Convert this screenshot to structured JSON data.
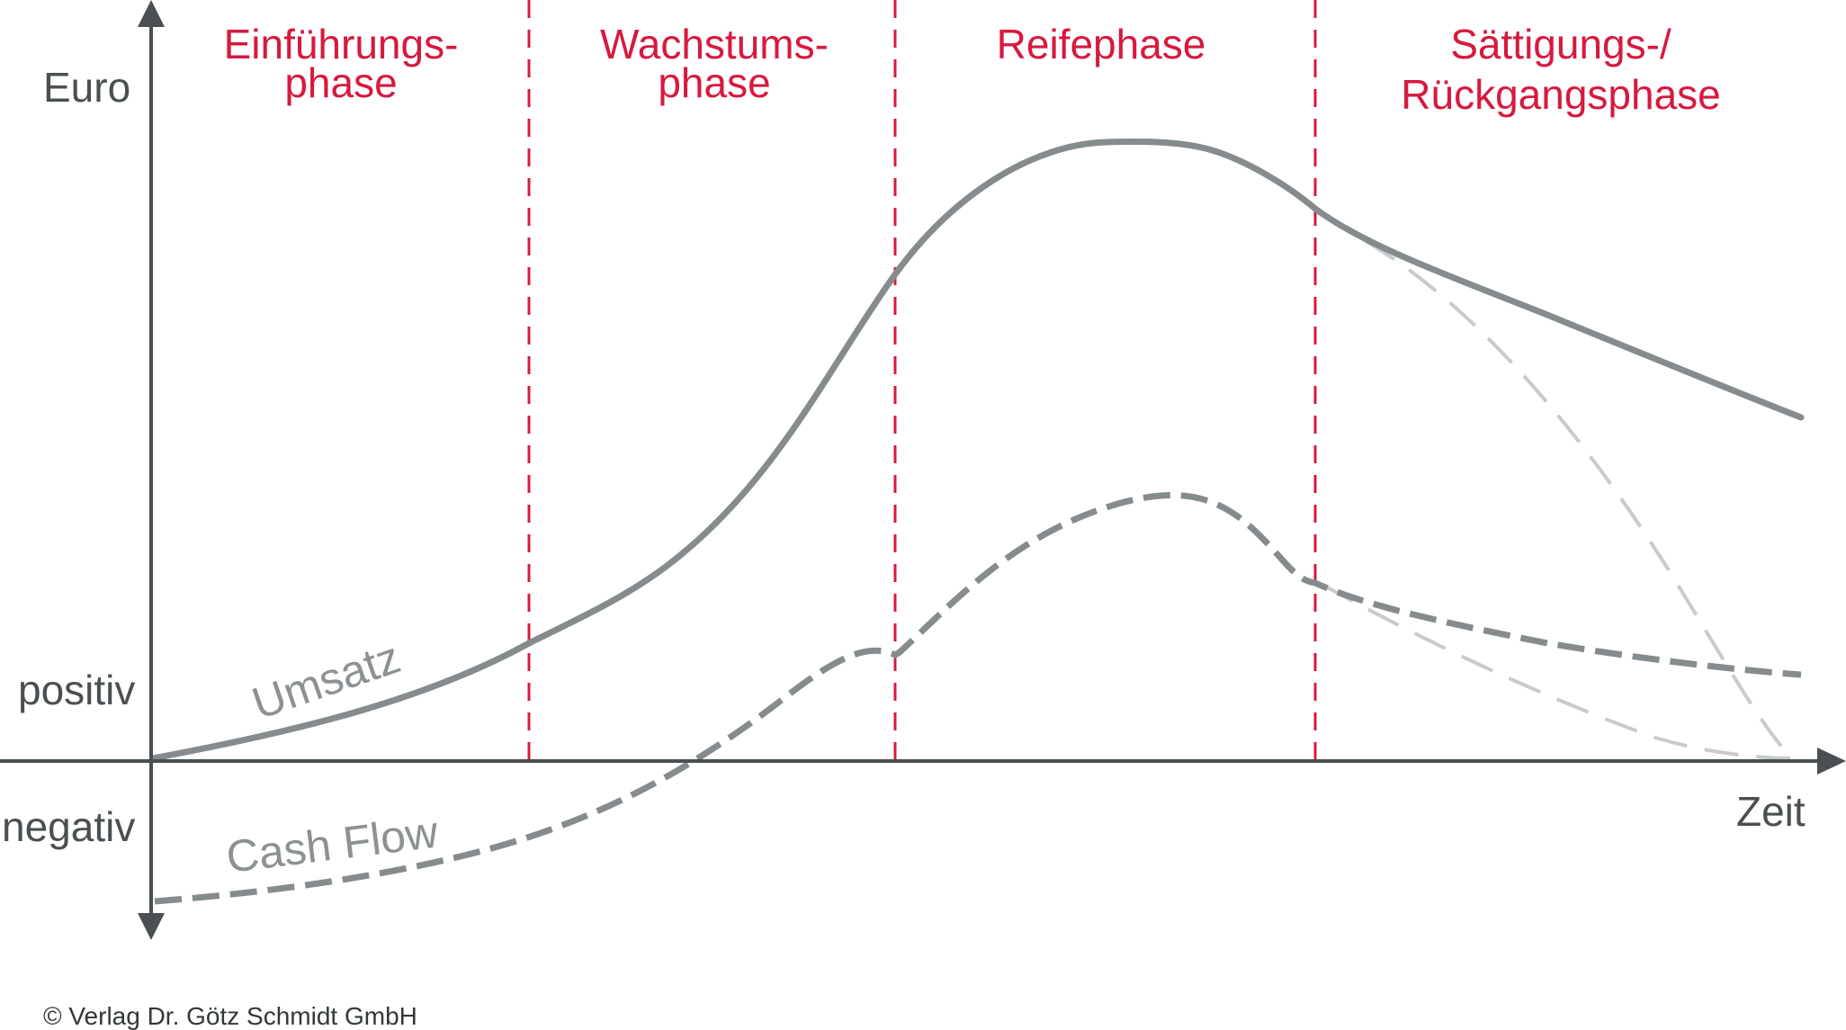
{
  "phases": [
    {
      "line1": "Einführungs-",
      "line2": "phase"
    },
    {
      "line1": "Wachstums-",
      "line2": "phase"
    },
    {
      "line1": "Reifephase",
      "line2": ""
    },
    {
      "line1": "Sättigungs-/",
      "line2": "Rückgangsphase"
    }
  ],
  "axis": {
    "y_label": "Euro",
    "x_label": "Zeit",
    "positive_label": "positiv",
    "negative_label": "negativ"
  },
  "curves": {
    "umsatz_label": "Umsatz",
    "cashflow_label": "Cash Flow"
  },
  "copyright": "© Verlag Dr. Götz Schmidt GmbH",
  "colors": {
    "phase_text": "#d7193f",
    "phase_divider": "#d7193f",
    "axis": "#4a4f52",
    "umsatz_line": "#868b8e",
    "cashflow_line": "#868b8e",
    "alt_scenario_line": "#c8cbcc"
  }
}
